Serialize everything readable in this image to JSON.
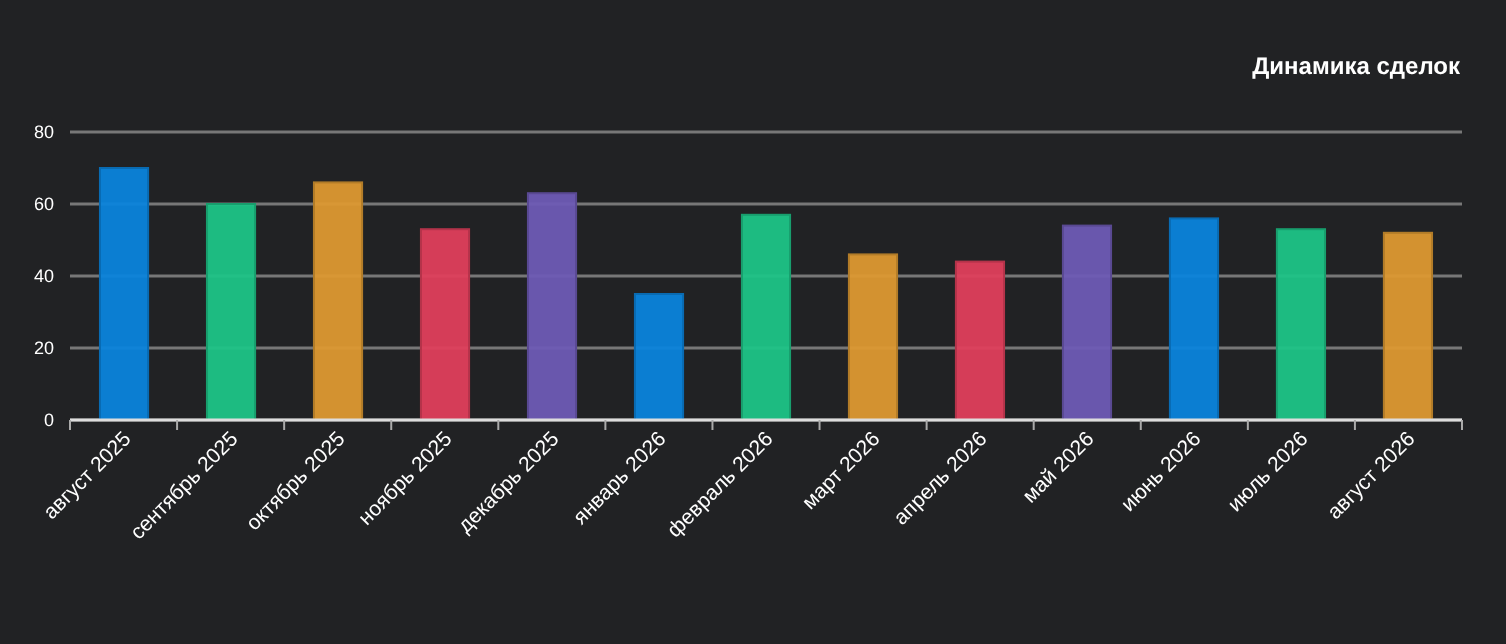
{
  "chart_data": {
    "type": "bar",
    "title": "Динамика сделок",
    "categories": [
      "август 2025",
      "сентябрь 2025",
      "октябрь 2025",
      "ноябрь 2025",
      "декабрь 2025",
      "январь 2026",
      "февраль 2026",
      "март 2026",
      "апрель 2026",
      "май 2026",
      "июнь 2026",
      "июль 2026",
      "август 2026"
    ],
    "values": [
      70,
      60,
      66,
      53,
      63,
      35,
      57,
      46,
      44,
      54,
      56,
      53,
      52
    ],
    "colors": [
      "#0b84dc",
      "#1ec487",
      "#dd9932",
      "#df3f5c",
      "#6e5bb5",
      "#0b84dc",
      "#1ec487",
      "#dd9932",
      "#df3f5c",
      "#6e5bb5",
      "#0b84dc",
      "#1ec487",
      "#dd9932"
    ],
    "ylim": [
      0,
      80
    ],
    "yticks": [
      0,
      20,
      40,
      60,
      80
    ],
    "grid": "y"
  }
}
